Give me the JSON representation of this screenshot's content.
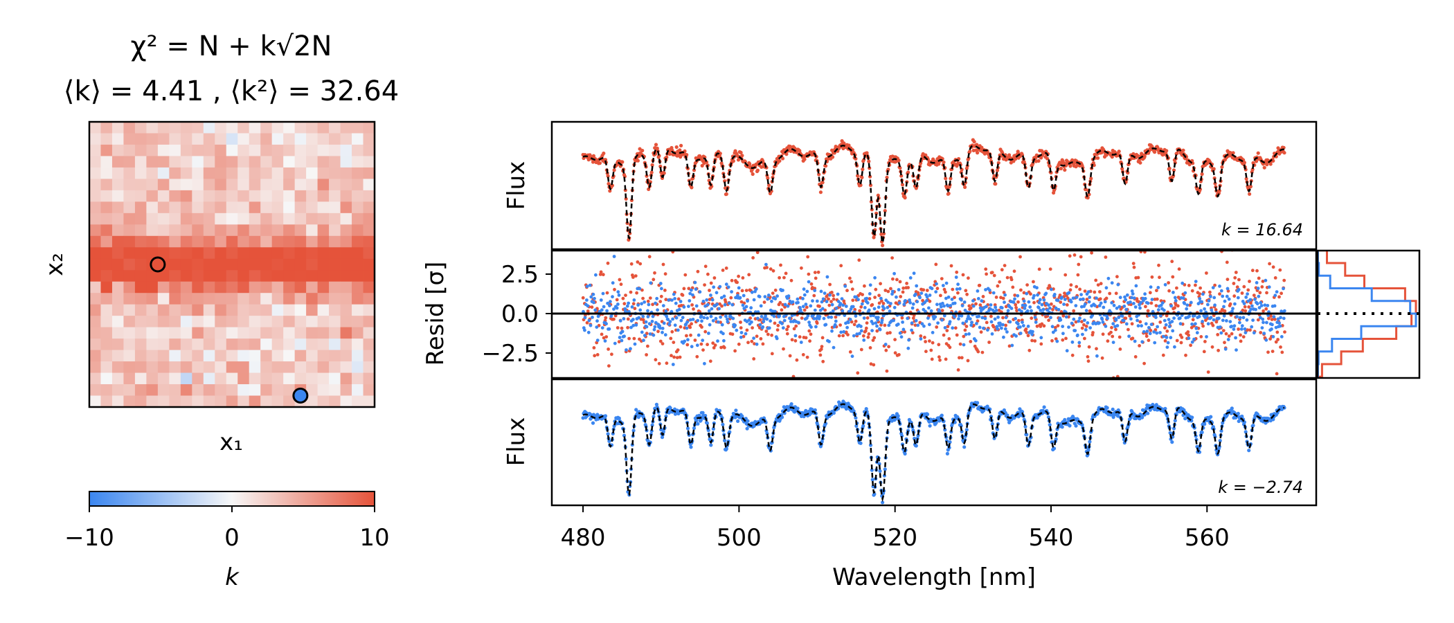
{
  "colors": {
    "positive": "#e5533a",
    "negative": "#3b86f0",
    "model": "#000000",
    "zero_line": "#000000"
  },
  "chart_data": [
    {
      "type": "heatmap",
      "name": "k-map",
      "title_line1": "χ² = N + k√2N",
      "title_line2": "⟨k⟩ = 4.41 , ⟨k²⟩ = 32.64",
      "xlabel": "x₁",
      "ylabel": "x₂",
      "grid_size": [
        25,
        25
      ],
      "description_of_values": "k per pixel; band of high k (~10) centered on row 12-13, background ~2-4",
      "band_row_center": 12.5,
      "band_peak_k": 10,
      "background_k": 2.5,
      "markers": [
        {
          "name": "red-pixel-marker",
          "col": 6,
          "row": 12,
          "color": "none",
          "k": 16.64
        },
        {
          "name": "blue-pixel-marker",
          "col": 18.5,
          "row": 23.5,
          "color": "#3b86f0",
          "k": -2.74
        }
      ],
      "colorbar": {
        "label": "k",
        "range": [
          -10,
          10
        ],
        "ticks": [
          "−10",
          "0",
          "10"
        ],
        "colors": [
          "#3b86f0",
          "#f7f7f7",
          "#e5533a"
        ]
      }
    },
    {
      "type": "line",
      "name": "spectrum-high-k",
      "ylabel": "Flux",
      "annotation": "k = 16.64",
      "xlim": [
        476,
        574
      ],
      "wavelength_range": [
        480,
        570
      ],
      "absorption_lines_nm": [
        483.5,
        485.9,
        488.5,
        490.2,
        493.8,
        496.4,
        498.4,
        504.0,
        510.5,
        515.5,
        517.3,
        518.4,
        521.2,
        522.7,
        526.8,
        528.9,
        532.8,
        537.1,
        540.3,
        544.7,
        549.5,
        555.5,
        558.9,
        561.4,
        565.4
      ],
      "series": [
        {
          "name": "data",
          "color": "#e5533a"
        },
        {
          "name": "model",
          "color": "#000000",
          "style": "dashed"
        }
      ]
    },
    {
      "type": "scatter",
      "name": "residuals",
      "ylabel": "Resid [σ]",
      "yticks": [
        "2.5",
        "0.0",
        "−2.5"
      ],
      "ylim": [
        -4.1,
        4.1
      ],
      "xlim": [
        476,
        574
      ],
      "series": [
        {
          "name": "high-k residuals",
          "color": "#e5533a",
          "sigma": 1.55
        },
        {
          "name": "low-k residuals",
          "color": "#3b86f0",
          "sigma": 0.95
        }
      ],
      "histogram": {
        "bins": [
          -4,
          -3.2,
          -2.4,
          -1.6,
          -0.8,
          0,
          0.8,
          1.6,
          2.4,
          3.2,
          4
        ],
        "reference": "dotted zero line"
      }
    },
    {
      "type": "line",
      "name": "spectrum-low-k",
      "ylabel": "Flux",
      "annotation": "k = −2.74",
      "xlabel": "Wavelength [nm]",
      "xticks": [
        "480",
        "500",
        "520",
        "540",
        "560"
      ],
      "xtick_values": [
        480,
        500,
        520,
        540,
        560
      ],
      "xlim": [
        476,
        574
      ],
      "series": [
        {
          "name": "data",
          "color": "#3b86f0"
        },
        {
          "name": "model",
          "color": "#000000",
          "style": "dashed"
        }
      ]
    }
  ]
}
